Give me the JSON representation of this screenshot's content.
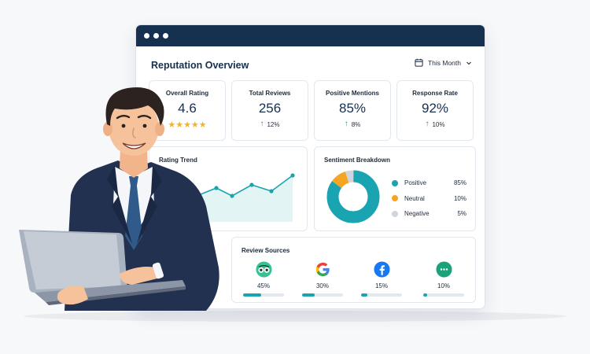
{
  "window": {
    "title": "Reputation Overview",
    "period": "This Month"
  },
  "colors": {
    "titlebar": "#16304f",
    "teal": "#1aa3b1",
    "orange": "#f5a524",
    "gray": "#cfd5dd",
    "green_arrow": "#1f9d55",
    "star": "#f5b324"
  },
  "kpis": [
    {
      "label": "Overall Rating",
      "value": "4.6",
      "stars": "★★★★★",
      "rating": 4.6
    },
    {
      "label": "Total Reviews",
      "value": "256",
      "change": "12%"
    },
    {
      "label": "Positive Mentions",
      "value": "85%",
      "change": "8%"
    },
    {
      "label": "Response Rate",
      "value": "92%",
      "change": "10%"
    }
  ],
  "rating_trend": {
    "title": "Rating Trend"
  },
  "sentiment": {
    "title": "Sentiment Breakdown",
    "items": [
      {
        "name": "Positive",
        "value": "85%",
        "pct": 85,
        "color": "#1aa3b1"
      },
      {
        "name": "Neutral",
        "value": "10%",
        "pct": 10,
        "color": "#f5a524"
      },
      {
        "name": "Negative",
        "value": "5%",
        "pct": 5,
        "color": "#cfd5dd"
      }
    ]
  },
  "sources": {
    "title": "Review Sources",
    "items": [
      {
        "icon": "tripadvisor-icon",
        "value": "45%",
        "pct": 45
      },
      {
        "icon": "google-icon",
        "value": "30%",
        "pct": 30
      },
      {
        "icon": "facebook-icon",
        "value": "15%",
        "pct": 15
      },
      {
        "icon": "chat-bubble-icon",
        "value": "10%",
        "pct": 10
      }
    ]
  }
}
